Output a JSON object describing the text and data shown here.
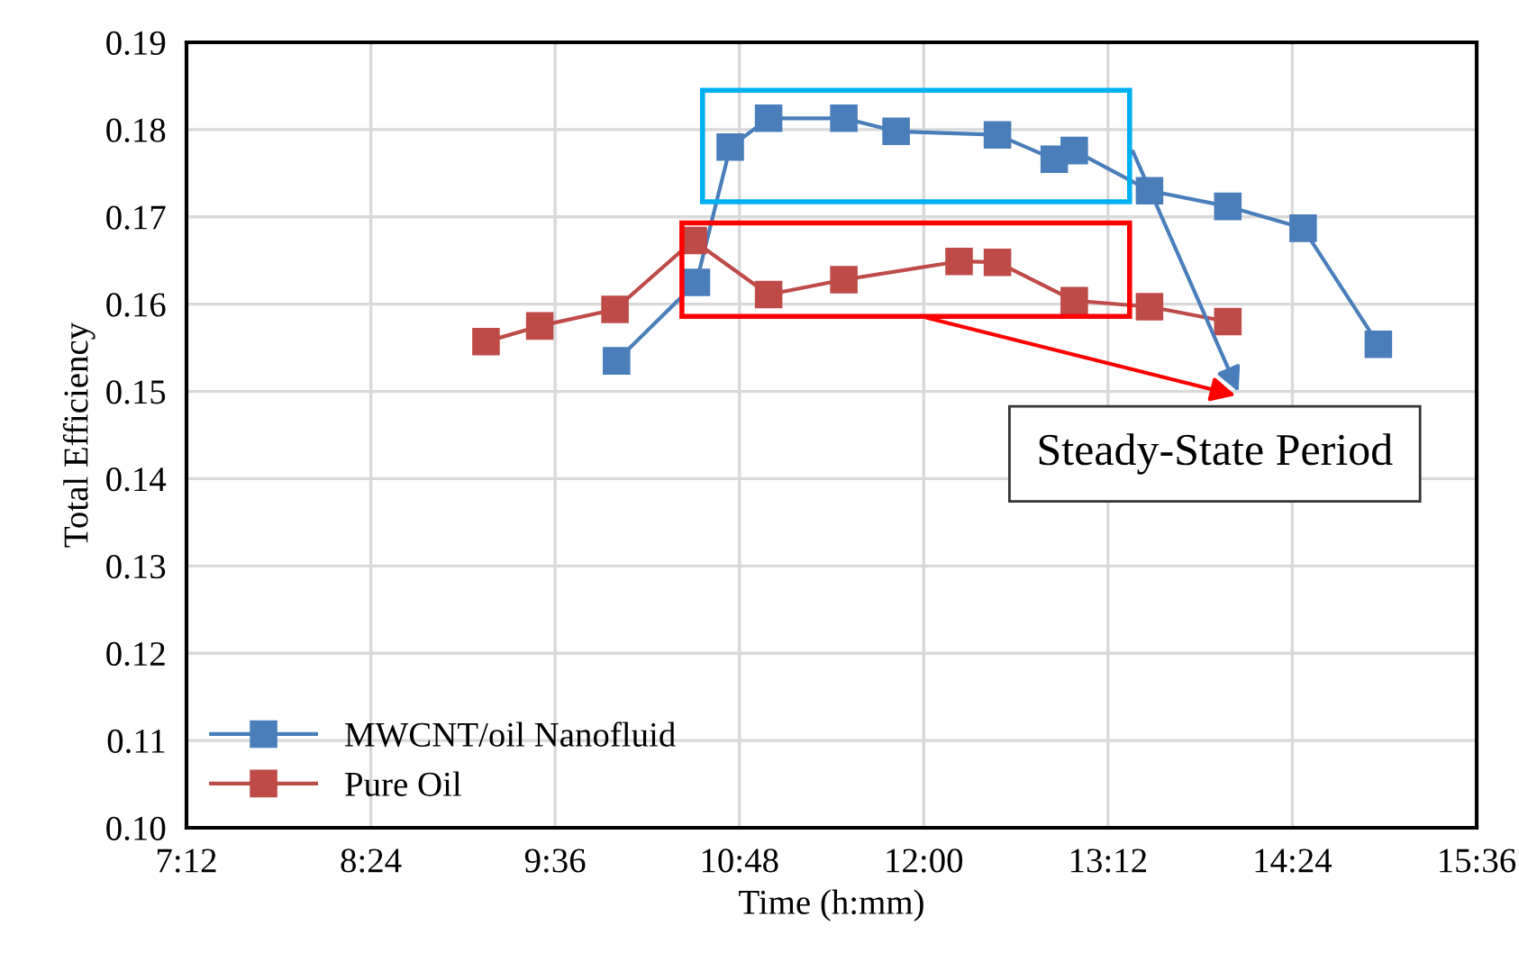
{
  "chart_data": {
    "type": "line",
    "xlabel": "Time (h:mm)",
    "ylabel": "Total Efficiency",
    "xlim": [
      7.2,
      15.6
    ],
    "xticks": [
      {
        "value": 7.2,
        "label": "7:12"
      },
      {
        "value": 8.4,
        "label": "8:24"
      },
      {
        "value": 9.6,
        "label": "9:36"
      },
      {
        "value": 10.8,
        "label": "10:48"
      },
      {
        "value": 12.0,
        "label": "12:00"
      },
      {
        "value": 13.2,
        "label": "13:12"
      },
      {
        "value": 14.4,
        "label": "14:24"
      },
      {
        "value": 15.6,
        "label": "15:36"
      }
    ],
    "ylim": [
      0.1,
      0.19
    ],
    "yticks": [
      {
        "value": 0.1,
        "label": "0.10"
      },
      {
        "value": 0.11,
        "label": "0.11"
      },
      {
        "value": 0.12,
        "label": "0.12"
      },
      {
        "value": 0.13,
        "label": "0.13"
      },
      {
        "value": 0.14,
        "label": "0.14"
      },
      {
        "value": 0.15,
        "label": "0.15"
      },
      {
        "value": 0.16,
        "label": "0.16"
      },
      {
        "value": 0.17,
        "label": "0.17"
      },
      {
        "value": 0.18,
        "label": "0.18"
      },
      {
        "value": 0.19,
        "label": "0.19"
      }
    ],
    "grid": true,
    "legend": "bottom left",
    "marker": "square",
    "line_style": "solid",
    "series": [
      {
        "name": "MWCNT/oil Nanofluid",
        "color": "#4a7ebb",
        "x": [
          10.0,
          10.52,
          10.74,
          10.99,
          11.48,
          11.82,
          12.48,
          12.85,
          12.98,
          13.47,
          13.98,
          14.47,
          14.96
        ],
        "values": [
          0.1535,
          0.1625,
          0.178,
          0.1813,
          0.1813,
          0.1798,
          0.1794,
          0.1766,
          0.1776,
          0.173,
          0.1712,
          0.1687,
          0.1554
        ]
      },
      {
        "name": "Pure Oil",
        "color": "#be4b48",
        "x": [
          9.15,
          9.5,
          9.99,
          10.5,
          10.99,
          11.48,
          12.23,
          12.48,
          12.98,
          13.47,
          13.98
        ],
        "values": [
          0.1557,
          0.1575,
          0.1594,
          0.1673,
          0.1611,
          0.1628,
          0.1649,
          0.1648,
          0.1604,
          0.1597,
          0.158
        ]
      }
    ],
    "annotations": [
      "Steady-State Period"
    ]
  }
}
